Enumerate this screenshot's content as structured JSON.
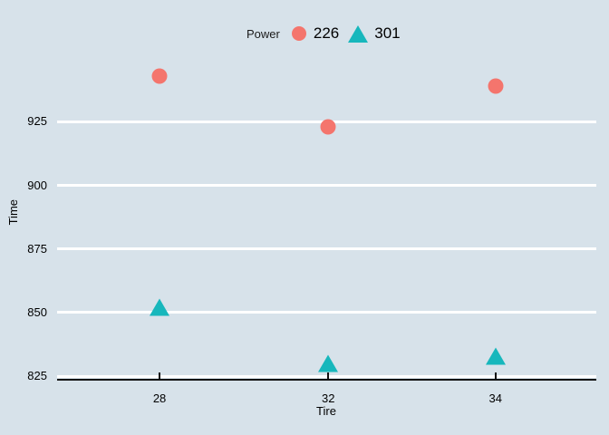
{
  "chart_data": {
    "type": "scatter",
    "title": "",
    "legend_title": "Power",
    "legend_position": "top",
    "xlabel": "Tire",
    "ylabel": "Time",
    "x_type": "categorical",
    "categories": [
      "28",
      "32",
      "34"
    ],
    "series": [
      {
        "name": "226",
        "marker": "circle",
        "color": "#f4756d",
        "values": [
          943,
          923,
          939
        ]
      },
      {
        "name": "301",
        "marker": "triangle",
        "color": "#17b7bc",
        "values": [
          852,
          830,
          833
        ]
      }
    ],
    "y_ticks": [
      925,
      900,
      875,
      850,
      825
    ],
    "ylim": [
      824,
      955
    ],
    "grid": "horizontal",
    "colors": {
      "background": "#d7e2ea",
      "gridline": "#ffffff",
      "axis_line": "#111111",
      "text": "#000000"
    }
  }
}
